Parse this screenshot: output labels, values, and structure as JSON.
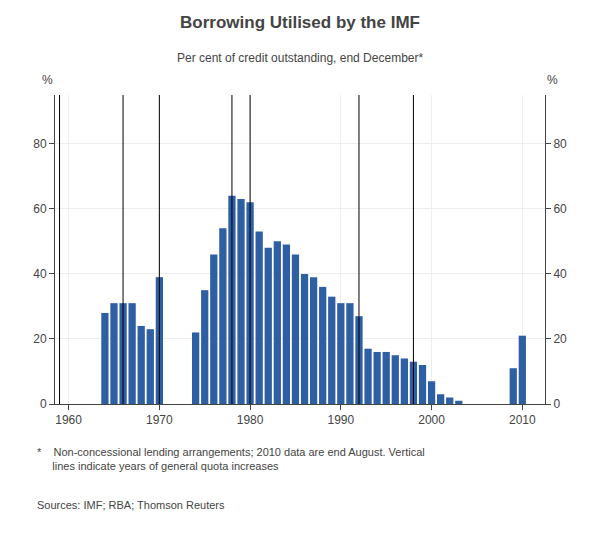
{
  "chart_data": {
    "type": "bar",
    "title": "Borrowing Utilised by the IMF",
    "subtitle": "Per cent of credit outstanding, end December*",
    "footnote": "*    Non-concessional lending arrangements; 2010 data are end August. Vertical\n     lines indicate years of general quota increases",
    "sources": "Sources: IMF; RBA; Thomson Reuters",
    "ylabel": "%",
    "y2label": "%",
    "x": [
      1960,
      1961,
      1962,
      1963,
      1964,
      1965,
      1966,
      1967,
      1968,
      1969,
      1970,
      1971,
      1972,
      1973,
      1974,
      1975,
      1976,
      1977,
      1978,
      1979,
      1980,
      1981,
      1982,
      1983,
      1984,
      1985,
      1986,
      1987,
      1988,
      1989,
      1990,
      1991,
      1992,
      1993,
      1994,
      1995,
      1996,
      1997,
      1998,
      1999,
      2000,
      2001,
      2002,
      2003,
      2004,
      2005,
      2006,
      2007,
      2008,
      2009,
      2010
    ],
    "values": [
      0,
      0,
      0,
      0,
      28,
      31,
      31,
      31,
      24,
      23,
      39,
      0,
      0,
      0,
      22,
      35,
      46,
      54,
      64,
      63,
      62,
      53,
      48,
      50,
      49,
      46,
      40,
      39,
      36,
      33,
      31,
      31,
      27,
      17,
      16,
      16,
      15,
      14,
      13,
      12,
      7,
      3,
      2,
      1,
      0,
      0,
      0,
      0,
      0,
      11,
      21
    ],
    "color": "#2E5FA3",
    "xlim": [
      1958.5,
      2012.5
    ],
    "xticks": [
      1960,
      1970,
      1980,
      1990,
      2000,
      2010
    ],
    "ylim": [
      0,
      95
    ],
    "yticks": [
      0,
      20,
      40,
      60,
      80
    ],
    "y2lim": [
      0,
      95
    ],
    "y2ticks": [
      0,
      20,
      40,
      60,
      80
    ],
    "grid": true,
    "vertical_lines": [
      1959,
      1966,
      1970,
      1978,
      1980,
      1992,
      1998
    ]
  }
}
